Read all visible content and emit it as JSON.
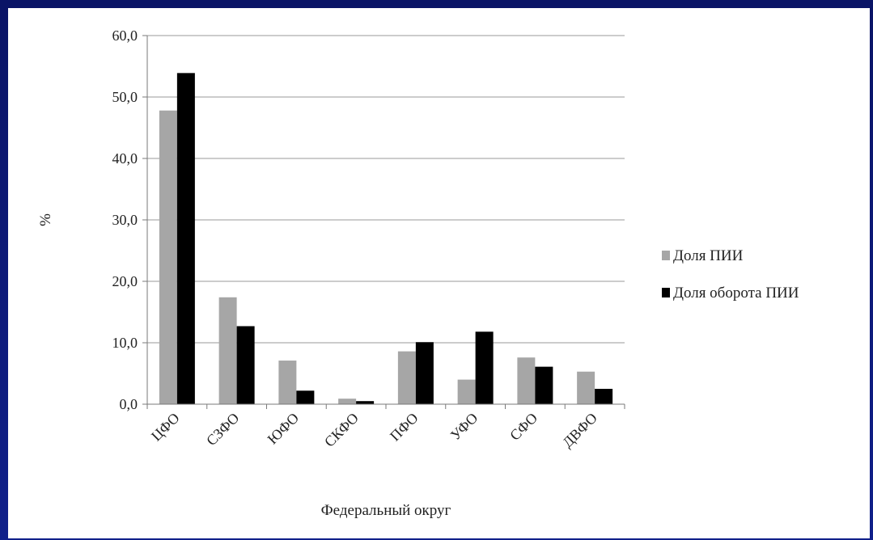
{
  "chart_data": {
    "type": "bar",
    "title": "",
    "xlabel": "Федеральный округ",
    "ylabel": "%",
    "ylim": [
      0,
      60
    ],
    "yticks": [
      "0,0",
      "10,0",
      "20,0",
      "30,0",
      "40,0",
      "50,0",
      "60,0"
    ],
    "categories": [
      "ЦФО",
      "СЗФО",
      "ЮФО",
      "СКФО",
      "ПФО",
      "УФО",
      "СФО",
      "ДВФО"
    ],
    "series": [
      {
        "name": "Доля ПИИ",
        "color": "#a6a6a6",
        "values": [
          47.8,
          17.4,
          7.1,
          0.9,
          8.6,
          4.0,
          7.6,
          5.3
        ]
      },
      {
        "name": "Доля оборота ПИИ",
        "color": "#000000",
        "values": [
          53.9,
          12.7,
          2.2,
          0.5,
          10.1,
          11.8,
          6.1,
          2.5
        ]
      }
    ],
    "grid": true,
    "legend": "right"
  }
}
